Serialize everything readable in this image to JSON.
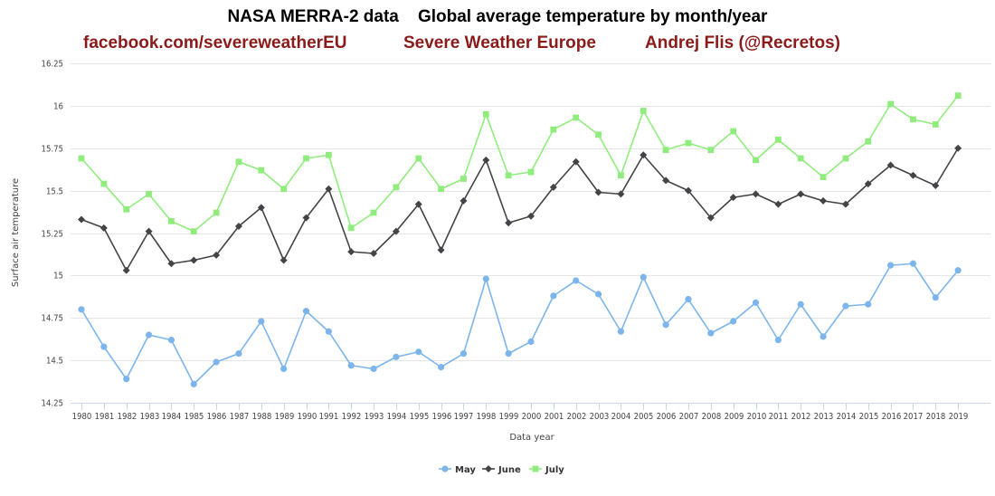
{
  "header": {
    "title": "NASA MERRA-2 data    Global average temperature by month/year",
    "credits": [
      "facebook.com/severeweatherEU",
      "Severe Weather Europe",
      "Andrej Flis (@Recretos)"
    ]
  },
  "chart_data": {
    "type": "line",
    "xlabel": "Data year",
    "ylabel": "Surface air temperature",
    "ylim": [
      14.25,
      16.25
    ],
    "yticks": [
      14.25,
      14.5,
      14.75,
      15,
      15.25,
      15.5,
      15.75,
      16,
      16.25
    ],
    "ytick_labels": [
      "14.25",
      "14.5",
      "14.75",
      "15",
      "15.25",
      "15.5",
      "15.75",
      "16",
      "16.25"
    ],
    "grid": "horizontal",
    "legend_position": "bottom-center",
    "categories": [
      "1980",
      "1981",
      "1982",
      "1983",
      "1984",
      "1985",
      "1986",
      "1987",
      "1988",
      "1989",
      "1990",
      "1991",
      "1992",
      "1993",
      "1994",
      "1995",
      "1996",
      "1997",
      "1998",
      "1999",
      "2000",
      "2001",
      "2002",
      "2003",
      "2004",
      "2005",
      "2006",
      "2007",
      "2008",
      "2009",
      "2010",
      "2011",
      "2012",
      "2013",
      "2014",
      "2015",
      "2016",
      "2017",
      "2018",
      "2019"
    ],
    "series": [
      {
        "name": "May",
        "color": "#7cb5ec",
        "marker": "circle",
        "values": [
          14.8,
          14.58,
          14.39,
          14.65,
          14.62,
          14.36,
          14.49,
          14.54,
          14.73,
          14.45,
          14.79,
          14.67,
          14.47,
          14.45,
          14.52,
          14.55,
          14.46,
          14.54,
          14.98,
          14.54,
          14.61,
          14.88,
          14.97,
          14.89,
          14.67,
          14.99,
          14.71,
          14.86,
          14.66,
          14.73,
          14.84,
          14.62,
          14.83,
          14.64,
          14.82,
          14.83,
          15.06,
          15.07,
          14.87,
          15.03
        ]
      },
      {
        "name": "June",
        "color": "#434348",
        "marker": "diamond",
        "values": [
          15.33,
          15.28,
          15.03,
          15.26,
          15.07,
          15.09,
          15.12,
          15.29,
          15.4,
          15.09,
          15.34,
          15.51,
          15.14,
          15.13,
          15.26,
          15.42,
          15.15,
          15.44,
          15.68,
          15.31,
          15.35,
          15.52,
          15.67,
          15.49,
          15.48,
          15.71,
          15.56,
          15.5,
          15.34,
          15.46,
          15.48,
          15.42,
          15.48,
          15.44,
          15.42,
          15.54,
          15.65,
          15.59,
          15.53,
          15.75
        ]
      },
      {
        "name": "July",
        "color": "#90ed7d",
        "marker": "square",
        "values": [
          15.69,
          15.54,
          15.39,
          15.48,
          15.32,
          15.26,
          15.37,
          15.67,
          15.62,
          15.51,
          15.69,
          15.71,
          15.28,
          15.37,
          15.52,
          15.69,
          15.51,
          15.57,
          15.95,
          15.59,
          15.61,
          15.86,
          15.93,
          15.83,
          15.59,
          15.97,
          15.74,
          15.78,
          15.74,
          15.85,
          15.68,
          15.8,
          15.69,
          15.58,
          15.69,
          15.79,
          16.01,
          15.92,
          15.89,
          16.06
        ]
      }
    ]
  }
}
